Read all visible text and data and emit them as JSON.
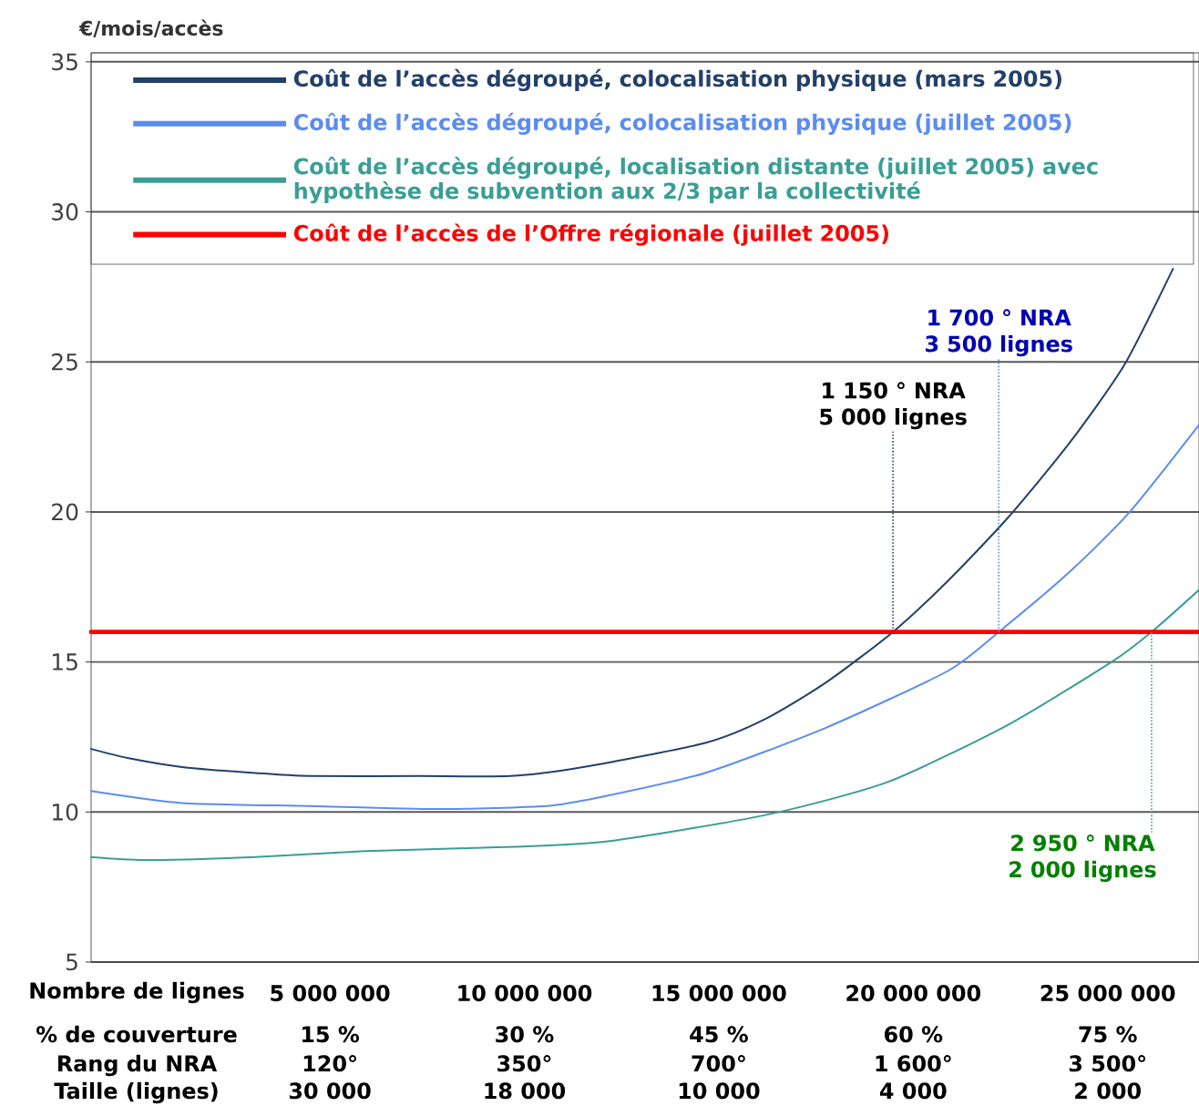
{
  "chart_data": {
    "type": "line",
    "ylabel": "€/mois/accès",
    "xlabel": "Nombre de lignes",
    "xlim": [
      -1140000,
      27350000
    ],
    "ylim": [
      5,
      35.3
    ],
    "xticks": [
      {
        "value": 5000000,
        "label": "5 000 000"
      },
      {
        "value": 10000000,
        "label": "10 000 000"
      },
      {
        "value": 15000000,
        "label": "15 000 000"
      },
      {
        "value": 20000000,
        "label": "20 000 000"
      },
      {
        "value": 25000000,
        "label": "25 000 000"
      }
    ],
    "yticks": [
      5,
      10,
      15,
      20,
      25,
      30,
      35
    ],
    "grid": "y",
    "legend": "top",
    "series": [
      {
        "name": "Coût de l’accès dégroupé, colocalisation physique (mars 2005)",
        "color": "#22406a",
        "x": [
          -1140000,
          -200000,
          1200000,
          3080000,
          4480000,
          7300000,
          9640000,
          11510000,
          14650000,
          16200000,
          17740000,
          19480000,
          20890000,
          22430000,
          24020000,
          25430000,
          26680000
        ],
        "values": [
          12.1,
          11.8,
          11.5,
          11.3,
          11.2,
          11.2,
          11.2,
          11.5,
          12.3,
          13.1,
          14.3,
          16.0,
          17.7,
          19.8,
          22.3,
          24.9,
          28.1
        ]
      },
      {
        "name": "Coût de l’accès dégroupé, colocalisation physique (juillet 2005)",
        "color": "#5b8cf0",
        "x": [
          -1140000,
          1200000,
          4480000,
          7760000,
          10580000,
          11980000,
          14650000,
          17740000,
          20890000,
          22200000,
          24020000,
          25570000,
          27350000
        ],
        "values": [
          10.7,
          10.3,
          10.2,
          10.1,
          10.2,
          10.5,
          11.3,
          12.8,
          14.7,
          16.0,
          18.0,
          20.0,
          22.9
        ]
      },
      {
        "name": "Coût de l’accès dégroupé, localisation distante (juillet 2005) avec hypothèse de subvention aux 2/3 par la collectivité",
        "color": "#3a9e95",
        "x": [
          -1140000,
          270000,
          3080000,
          5890000,
          8700000,
          11980000,
          16200000,
          19340000,
          22430000,
          25100000,
          26130000,
          27350000
        ],
        "values": [
          8.5,
          8.4,
          8.5,
          8.7,
          8.8,
          9.0,
          9.9,
          11.0,
          12.9,
          15.0,
          16.0,
          17.4
        ]
      },
      {
        "name": "Coût de l’accès de l’Offre régionale (juillet 2005)",
        "color": "#ff0000",
        "x": [
          -1140000,
          27350000
        ],
        "values": [
          16,
          16
        ]
      }
    ],
    "annotations": [
      {
        "text": "1 150 ° NRA 5 000 lignes",
        "x": 19480000,
        "y": 16
      },
      {
        "text": "1 700 ° NRA 3 500 lignes",
        "x": 22200000,
        "y": 16
      },
      {
        "text": "2 950 ° NRA 2 000 lignes",
        "x": 26130000,
        "y": 16
      },
      "% de couverture",
      "15 %",
      "30 %",
      "45 %",
      "60 %",
      "75 %",
      "Rang du NRA",
      "120°",
      "350°",
      "700°",
      "1 600°",
      "3 500°",
      "Taille (lignes)",
      "30 000",
      "18 000",
      "10 000",
      "4 000",
      "2 000"
    ]
  }
}
